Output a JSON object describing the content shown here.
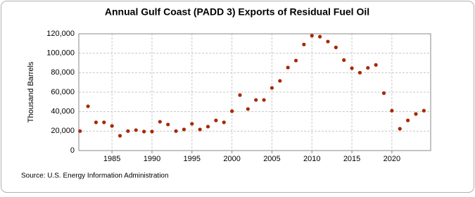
{
  "chart_data": {
    "type": "scatter",
    "title": "Annual Gulf Coast (PADD 3) Exports of Residual Fuel Oil",
    "y_label": "Thousand Barrels",
    "source": "Source: U.S. Energy Information Administration",
    "x": [
      1981,
      1982,
      1983,
      1984,
      1985,
      1986,
      1987,
      1988,
      1989,
      1990,
      1991,
      1992,
      1993,
      1994,
      1995,
      1996,
      1997,
      1998,
      1999,
      2000,
      2001,
      2002,
      2003,
      2004,
      2005,
      2006,
      2007,
      2008,
      2009,
      2010,
      2011,
      2012,
      2013,
      2014,
      2015,
      2016,
      2017,
      2018,
      2019,
      2020,
      2021,
      2022,
      2023,
      2024
    ],
    "series": [
      {
        "name": "Exports",
        "color": "#a52a00",
        "values": [
          20000,
          45500,
          29000,
          29000,
          25300,
          15200,
          20000,
          21000,
          19500,
          19500,
          29600,
          26800,
          20000,
          21700,
          27500,
          21700,
          24600,
          31000,
          29000,
          40500,
          57000,
          42700,
          52000,
          52000,
          64400,
          71600,
          85300,
          92500,
          109000,
          118000,
          117000,
          112000,
          106000,
          93000,
          84600,
          80000,
          85000,
          88000,
          59000,
          41000,
          22400,
          31000,
          37600,
          41000
        ]
      }
    ],
    "xlim": [
      1980.85,
      2024.85
    ],
    "xticks": [
      1985,
      1990,
      1995,
      2000,
      2005,
      2010,
      2015,
      2020
    ],
    "ylim": [
      0,
      120000
    ],
    "yticks": [
      0,
      {
        "value": 20000,
        "label": "20,000"
      },
      {
        "value": 40000,
        "label": "40,000"
      },
      {
        "value": 60000,
        "label": "60,000"
      },
      {
        "value": 80000,
        "label": "80,000"
      },
      {
        "value": 100000,
        "label": "100,000"
      },
      {
        "value": 120000,
        "label": "120,000"
      }
    ],
    "grid": true
  }
}
